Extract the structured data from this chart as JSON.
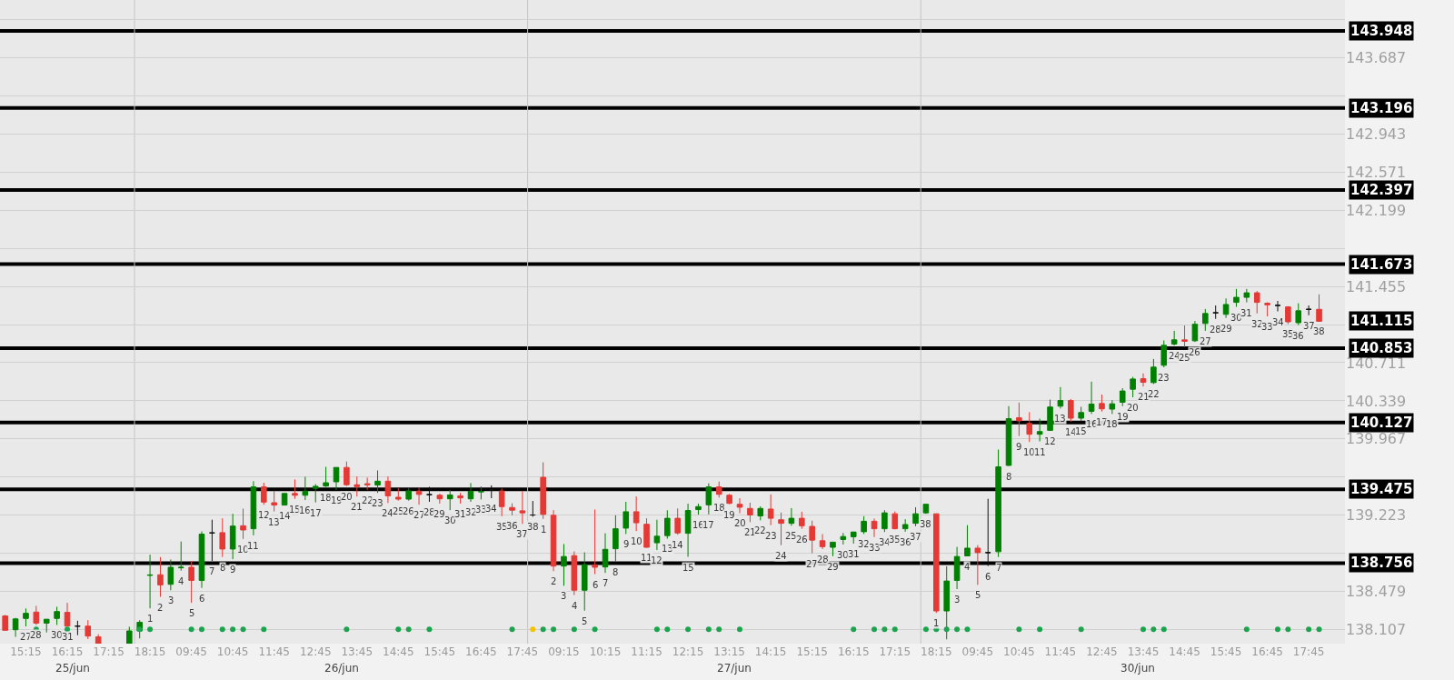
{
  "chart_data": {
    "type": "candlestick",
    "categories": [
      null,
      null,
      "15:15",
      null,
      null,
      null,
      "16:15",
      null,
      null,
      null,
      "17:15",
      null,
      null,
      null,
      "18:15",
      null,
      null,
      null,
      "09:45",
      null,
      null,
      null,
      "10:45",
      null,
      null,
      null,
      "11:45",
      null,
      null,
      null,
      "12:45",
      null,
      null,
      null,
      "13:45",
      null,
      null,
      null,
      "14:45",
      null,
      null,
      null,
      "15:45",
      null,
      null,
      null,
      "16:45",
      null,
      null,
      null,
      "17:45",
      null,
      null,
      null,
      "09:15",
      null,
      null,
      null,
      "10:15",
      null,
      null,
      null,
      "11:15",
      null,
      null,
      null,
      "12:15",
      null,
      null,
      null,
      "13:15",
      null,
      null,
      null,
      "14:15",
      null,
      null,
      null,
      "15:15",
      null,
      null,
      null,
      "16:15",
      null,
      null,
      null,
      "17:15",
      null,
      null,
      null,
      "18:15",
      null,
      null,
      null,
      "09:45",
      null,
      null,
      null,
      "10:45",
      null,
      null,
      null,
      "11:45",
      null,
      null,
      null,
      "12:45",
      null,
      null,
      null,
      "13:45",
      null,
      null,
      null,
      "14:45",
      null,
      null,
      null,
      "15:45",
      null,
      null,
      null,
      "16:45",
      null,
      null,
      null,
      "17:45",
      null
    ],
    "ohlc": [
      [
        138.24,
        138.25,
        138.1,
        138.1
      ],
      [
        138.106,
        138.222,
        138.036,
        138.211
      ],
      [
        138.216,
        138.313,
        138.138,
        138.266
      ],
      [
        138.278,
        138.339,
        138.152,
        138.17
      ],
      [
        138.17,
        138.208,
        138.079,
        138.208
      ],
      [
        138.216,
        138.33,
        138.152,
        138.283
      ],
      [
        138.275,
        138.368,
        138.141,
        138.141
      ],
      [
        138.141,
        138.193,
        138.053,
        138.141
      ],
      [
        138.141,
        138.199,
        138.015,
        138.044
      ],
      [
        138.036,
        138.062,
        137.97,
        137.97
      ],
      null,
      null,
      [
        137.97,
        138.135,
        137.97,
        138.094
      ],
      [
        138.094,
        138.199,
        138.021,
        138.178
      ],
      [
        138.636,
        138.838,
        138.315,
        138.64
      ],
      [
        138.642,
        138.815,
        138.426,
        138.543
      ],
      [
        138.549,
        138.791,
        138.491,
        138.715
      ],
      [
        138.71,
        138.966,
        138.683,
        138.715
      ],
      [
        138.715,
        138.777,
        138.368,
        138.587
      ],
      [
        138.587,
        139.065,
        138.514,
        139.038
      ],
      [
        139.05,
        139.179,
        138.777,
        139.05
      ],
      [
        139.053,
        139.193,
        138.815,
        138.893
      ],
      [
        138.893,
        139.237,
        138.794,
        139.117
      ],
      [
        139.12,
        139.287,
        138.992,
        139.079
      ],
      [
        139.091,
        139.555,
        139.027,
        139.499
      ],
      [
        139.499,
        139.54,
        139.325,
        139.351
      ],
      [
        139.345,
        139.462,
        139.26,
        139.322
      ],
      [
        139.322,
        139.435,
        139.319,
        139.435
      ],
      [
        139.435,
        139.572,
        139.383,
        139.418
      ],
      [
        139.418,
        139.598,
        139.371,
        139.458
      ],
      [
        139.485,
        139.526,
        139.348,
        139.505
      ],
      [
        139.508,
        139.695,
        139.499,
        139.54
      ],
      [
        139.549,
        139.689,
        139.47,
        139.689
      ],
      [
        139.689,
        139.747,
        139.508,
        139.52
      ],
      [
        139.52,
        139.601,
        139.406,
        139.502
      ],
      [
        139.53,
        139.59,
        139.47,
        139.52
      ],
      [
        139.517,
        139.66,
        139.441,
        139.555
      ],
      [
        139.555,
        139.601,
        139.342,
        139.412
      ],
      [
        139.398,
        139.488,
        139.365,
        139.38
      ],
      [
        139.38,
        139.488,
        139.365,
        139.461
      ],
      [
        139.458,
        139.491,
        139.325,
        139.426
      ],
      [
        139.424,
        139.5,
        139.354,
        139.424
      ],
      [
        139.418,
        139.433,
        139.336,
        139.383
      ],
      [
        139.383,
        139.471,
        139.272,
        139.421
      ],
      [
        139.412,
        139.441,
        139.336,
        139.392
      ],
      [
        139.383,
        139.537,
        139.354,
        139.456
      ],
      [
        139.45,
        139.503,
        139.377,
        139.456
      ],
      [
        139.471,
        139.514,
        139.389,
        139.471
      ],
      [
        139.459,
        139.485,
        139.214,
        139.307
      ],
      [
        139.298,
        139.339,
        139.223,
        139.272
      ],
      [
        139.266,
        139.459,
        139.138,
        139.246
      ],
      [
        139.225,
        139.362,
        139.208,
        139.225
      ],
      [
        139.593,
        139.739,
        139.187,
        139.231
      ],
      [
        139.222,
        139.272,
        138.677,
        138.727
      ],
      [
        138.727,
        138.942,
        138.534,
        138.82
      ],
      [
        138.829,
        138.87,
        138.444,
        138.491
      ],
      [
        138.491,
        138.861,
        138.292,
        138.741
      ],
      [
        138.738,
        139.278,
        138.648,
        138.715
      ],
      [
        138.718,
        139.047,
        138.66,
        138.89
      ],
      [
        138.896,
        139.222,
        138.771,
        139.091
      ],
      [
        139.097,
        139.354,
        139.039,
        139.257
      ],
      [
        139.257,
        139.406,
        139.068,
        139.149
      ],
      [
        139.135,
        139.193,
        138.907,
        138.91
      ],
      [
        138.954,
        139.179,
        138.884,
        139.018
      ],
      [
        139.024,
        139.272,
        138.995,
        139.193
      ],
      [
        139.193,
        139.289,
        139.033,
        139.05
      ],
      [
        139.047,
        139.336,
        138.817,
        139.269
      ],
      [
        139.278,
        139.336,
        139.228,
        139.307
      ],
      [
        139.324,
        139.534,
        139.231,
        139.499
      ],
      [
        139.499,
        139.552,
        139.395,
        139.427
      ],
      [
        139.418,
        139.43,
        139.33,
        139.339
      ],
      [
        139.33,
        139.389,
        139.243,
        139.301
      ],
      [
        139.289,
        139.345,
        139.155,
        139.225
      ],
      [
        139.216,
        139.31,
        139.173,
        139.289
      ],
      [
        139.283,
        139.426,
        139.126,
        139.193
      ],
      [
        139.179,
        139.249,
        138.931,
        139.144
      ],
      [
        139.144,
        139.292,
        139.12,
        139.193
      ],
      [
        139.193,
        139.257,
        139.091,
        139.12
      ],
      [
        139.114,
        139.17,
        138.852,
        138.98
      ],
      [
        138.974,
        139.039,
        138.893,
        138.916
      ],
      [
        138.91,
        138.96,
        138.823,
        138.96
      ],
      [
        138.986,
        139.05,
        138.937,
        139.015
      ],
      [
        139.013,
        139.062,
        138.946,
        139.059
      ],
      [
        139.062,
        139.214,
        139.039,
        139.164
      ],
      [
        139.164,
        139.19,
        139.01,
        139.091
      ],
      [
        139.091,
        139.272,
        139.059,
        139.246
      ],
      [
        139.237,
        139.26,
        139.085,
        139.091
      ],
      [
        139.091,
        139.184,
        139.062,
        139.132
      ],
      [
        139.144,
        139.301,
        139.115,
        139.237
      ],
      [
        139.246,
        139.33,
        139.237,
        139.33
      ],
      [
        139.237,
        139.237,
        138.269,
        138.289
      ],
      [
        138.289,
        138.724,
        138.012,
        138.581
      ],
      [
        138.587,
        138.914,
        138.502,
        138.82
      ],
      [
        138.826,
        139.126,
        138.823,
        138.902
      ],
      [
        138.902,
        138.931,
        138.543,
        138.858
      ],
      [
        138.858,
        139.383,
        138.727,
        138.858
      ],
      [
        138.867,
        139.864,
        138.815,
        139.695
      ],
      [
        139.709,
        140.287,
        139.703,
        140.165
      ],
      [
        140.174,
        140.322,
        139.995,
        140.144
      ],
      [
        140.118,
        140.229,
        139.937,
        140.013
      ],
      [
        140.013,
        140.165,
        139.943,
        140.039
      ],
      [
        140.051,
        140.351,
        140.048,
        140.279
      ],
      [
        140.287,
        140.473,
        140.264,
        140.342
      ],
      [
        140.342,
        140.357,
        140.135,
        140.17
      ],
      [
        140.17,
        140.281,
        140.141,
        140.225
      ],
      [
        140.237,
        140.526,
        140.211,
        140.307
      ],
      [
        140.313,
        140.4,
        140.234,
        140.261
      ],
      [
        140.258,
        140.345,
        140.211,
        140.31
      ],
      [
        140.325,
        140.462,
        140.287,
        140.435
      ],
      [
        140.452,
        140.572,
        140.374,
        140.552
      ],
      [
        140.555,
        140.607,
        140.479,
        140.52
      ],
      [
        140.517,
        140.747,
        140.503,
        140.668
      ],
      [
        140.686,
        140.928,
        140.666,
        140.881
      ],
      [
        140.893,
        141.022,
        140.879,
        140.934
      ],
      [
        140.934,
        141.074,
        140.864,
        140.92
      ],
      [
        140.925,
        141.118,
        140.914,
        141.086
      ],
      [
        141.094,
        141.235,
        141.022,
        141.191
      ],
      [
        141.198,
        141.27,
        141.139,
        141.198
      ],
      [
        141.183,
        141.338,
        141.148,
        141.279
      ],
      [
        141.3,
        141.431,
        141.256,
        141.349
      ],
      [
        141.349,
        141.431,
        141.3,
        141.393
      ],
      [
        141.393,
        141.41,
        141.192,
        141.3
      ],
      [
        141.291,
        141.3,
        141.163,
        141.276
      ],
      [
        141.27,
        141.314,
        141.212,
        141.27
      ],
      [
        141.256,
        141.262,
        141.089,
        141.11
      ],
      [
        141.101,
        141.291,
        141.078,
        141.218
      ],
      [
        141.232,
        141.27,
        141.174,
        141.232
      ],
      [
        141.232,
        141.378,
        141.115,
        141.115
      ]
    ],
    "colors": [
      "#e53935",
      "#008000",
      "#008000",
      "#e53935",
      "#008000",
      "#008000",
      "#e53935",
      "#111111",
      "#e53935",
      "#e53935",
      null,
      null,
      "#008000",
      "#008000",
      "#008000",
      "#e53935",
      "#008000",
      "#008000",
      "#e53935",
      "#008000",
      "#111111",
      "#e53935",
      "#008000",
      "#e53935",
      "#008000",
      "#e53935",
      "#e53935",
      "#008000",
      "#e53935",
      "#008000",
      "#008000",
      "#008000",
      "#008000",
      "#e53935",
      "#e53935",
      "#e53935",
      "#008000",
      "#e53935",
      "#e53935",
      "#008000",
      "#e53935",
      "#111111",
      "#e53935",
      "#008000",
      "#e53935",
      "#008000",
      "#008000",
      "#111111",
      "#e53935",
      "#e53935",
      "#e53935",
      "#111111",
      "#e53935",
      "#e53935",
      "#008000",
      "#e53935",
      "#008000",
      "#e53935",
      "#008000",
      "#008000",
      "#008000",
      "#e53935",
      "#e53935",
      "#008000",
      "#008000",
      "#e53935",
      "#008000",
      "#008000",
      "#008000",
      "#e53935",
      "#e53935",
      "#e53935",
      "#e53935",
      "#008000",
      "#e53935",
      "#e53935",
      "#008000",
      "#e53935",
      "#e53935",
      "#e53935",
      "#008000",
      "#008000",
      "#008000",
      "#008000",
      "#e53935",
      "#008000",
      "#e53935",
      "#008000",
      "#008000",
      "#008000",
      "#e53935",
      "#008000",
      "#008000",
      "#008000",
      "#e53935",
      "#111111",
      "#008000",
      "#008000",
      "#e53935",
      "#e53935",
      "#008000",
      "#008000",
      "#008000",
      "#e53935",
      "#008000",
      "#008000",
      "#e53935",
      "#008000",
      "#008000",
      "#008000",
      "#e53935",
      "#008000",
      "#008000",
      "#008000",
      "#e53935",
      "#008000",
      "#008000",
      "#111111",
      "#008000",
      "#008000",
      "#008000",
      "#e53935",
      "#e53935",
      "#111111",
      "#e53935",
      "#008000",
      "#111111",
      "#e53935"
    ],
    "value_labels": [
      null,
      null,
      "27",
      "28",
      null,
      "30",
      "31",
      null,
      null,
      null,
      null,
      null,
      null,
      null,
      "1",
      "2",
      "3",
      "4",
      "5",
      "6",
      "7",
      "8",
      "9",
      "10",
      "11",
      "12",
      "13",
      "14",
      "15",
      "16",
      "17",
      "18",
      "19",
      "20",
      "21",
      "22",
      "23",
      "24",
      "25",
      "26",
      "27",
      "28",
      "29",
      "30",
      "31",
      "32",
      "33",
      "34",
      "35",
      "36",
      "37",
      "38",
      "1",
      "2",
      "3",
      "4",
      "5",
      "6",
      "7",
      "8",
      "9",
      "10",
      "11",
      "12",
      "13",
      "14",
      "15",
      "16",
      "17",
      "18",
      "19",
      "20",
      "21",
      "22",
      "23",
      "24",
      "25",
      "26",
      "27",
      "28",
      "29",
      "30",
      "31",
      "32",
      "33",
      "34",
      "35",
      "36",
      "37",
      "38",
      "1",
      null,
      "3",
      "4",
      "5",
      "6",
      "7",
      "8",
      "9",
      "10",
      "11",
      "12",
      "13",
      "14",
      "15",
      "16",
      "17",
      "18",
      "19",
      "20",
      "21",
      "22",
      "23",
      "24",
      "25",
      "26",
      "27",
      "28",
      "29",
      "30",
      "31",
      "32",
      "33",
      "34",
      "35",
      "36",
      "37",
      "38"
    ],
    "series": [
      {
        "type": "scatter",
        "marker": "circle",
        "values": [
          null,
          null,
          null,
          138.11,
          null,
          null,
          138.11,
          null,
          null,
          null,
          null,
          null,
          null,
          138.11,
          138.11,
          null,
          null,
          null,
          138.11,
          138.11,
          null,
          138.11,
          138.11,
          138.11,
          null,
          138.11,
          null,
          null,
          null,
          null,
          null,
          null,
          null,
          138.11,
          null,
          null,
          null,
          null,
          138.11,
          138.11,
          null,
          138.11,
          null,
          null,
          null,
          null,
          null,
          null,
          null,
          138.11,
          null,
          138.11,
          138.11,
          138.11,
          null,
          138.11,
          null,
          138.11,
          null,
          null,
          null,
          null,
          null,
          138.11,
          138.11,
          null,
          138.11,
          null,
          138.11,
          138.11,
          null,
          138.11,
          null,
          null,
          null,
          null,
          null,
          null,
          null,
          null,
          null,
          null,
          138.11,
          null,
          138.11,
          138.11,
          138.11,
          null,
          null,
          138.11,
          138.11,
          138.11,
          138.11,
          138.11,
          null,
          null,
          null,
          null,
          138.11,
          null,
          138.11,
          null,
          null,
          null,
          138.11,
          null,
          null,
          null,
          null,
          null,
          138.11,
          138.11,
          138.11,
          null,
          null,
          null,
          null,
          null,
          null,
          null,
          138.11,
          null,
          null,
          138.11,
          138.11,
          null,
          138.11,
          138.11
        ],
        "colors": [
          null,
          null,
          null,
          "#1ba34e",
          null,
          null,
          "#1ba34e",
          null,
          null,
          null,
          null,
          null,
          null,
          "#1ba34e",
          "#1ba34e",
          null,
          null,
          null,
          "#1ba34e",
          "#1ba34e",
          null,
          "#1ba34e",
          "#1ba34e",
          "#1ba34e",
          null,
          "#1ba34e",
          null,
          null,
          null,
          null,
          null,
          null,
          null,
          "#1ba34e",
          null,
          null,
          null,
          null,
          "#1ba34e",
          "#1ba34e",
          null,
          "#1ba34e",
          null,
          null,
          null,
          null,
          null,
          null,
          null,
          "#1ba34e",
          null,
          "#f2c200",
          "#1ba34e",
          "#1ba34e",
          null,
          "#1ba34e",
          null,
          "#1ba34e",
          null,
          null,
          null,
          null,
          null,
          "#1ba34e",
          "#1ba34e",
          null,
          "#1ba34e",
          null,
          "#1ba34e",
          "#1ba34e",
          null,
          "#1ba34e",
          null,
          null,
          null,
          null,
          null,
          null,
          null,
          null,
          null,
          null,
          "#1ba34e",
          null,
          "#1ba34e",
          "#1ba34e",
          "#1ba34e",
          null,
          null,
          "#1ba34e",
          "#1ba34e",
          "#1ba34e",
          "#1ba34e",
          "#1ba34e",
          null,
          null,
          null,
          null,
          "#1ba34e",
          null,
          "#1ba34e",
          null,
          null,
          null,
          "#1ba34e",
          null,
          null,
          null,
          null,
          null,
          "#1ba34e",
          "#1ba34e",
          "#1ba34e",
          null,
          null,
          null,
          null,
          null,
          null,
          null,
          "#1ba34e",
          null,
          null,
          "#1ba34e",
          "#1ba34e",
          null,
          "#1ba34e",
          "#1ba34e"
        ]
      }
    ],
    "ylim": [
      137.97,
      144.25
    ],
    "yticks": [
      138.107,
      138.479,
      {
        "value": 138.851,
        "label": null
      },
      139.223,
      {
        "value": 139.595,
        "label": null
      },
      139.967,
      140.339,
      140.711,
      {
        "value": 141.083,
        "label": null
      },
      141.455,
      {
        "value": 141.827,
        "label": null
      },
      142.199,
      142.571,
      142.943,
      {
        "value": 143.315,
        "label": null
      },
      143.687,
      {
        "value": 144.059,
        "label": null
      }
    ],
    "grid": "y",
    "ref_lines": [
      {
        "axis": "y",
        "value": 143.948,
        "label": "143.948",
        "color": "#000000"
      },
      {
        "axis": "y",
        "value": 143.196,
        "label": "143.196",
        "color": "#000000"
      },
      {
        "axis": "y",
        "value": 142.397,
        "label": "142.397",
        "color": "#000000"
      },
      {
        "axis": "y",
        "value": 141.673,
        "label": "141.673",
        "color": "#000000"
      },
      {
        "axis": "y",
        "value": 140.853,
        "label": "140.853",
        "color": "#000000"
      },
      {
        "axis": "y",
        "value": 140.127,
        "label": "140.127",
        "color": "#000000"
      },
      {
        "axis": "y",
        "value": 139.475,
        "label": "139.475",
        "color": "#000000"
      },
      {
        "axis": "y",
        "value": 138.756,
        "label": "138.756",
        "color": "#000000"
      }
    ],
    "annotations": [
      "141.115",
      "25/jun",
      "26/jun",
      "27/jun",
      "30/jun"
    ]
  }
}
